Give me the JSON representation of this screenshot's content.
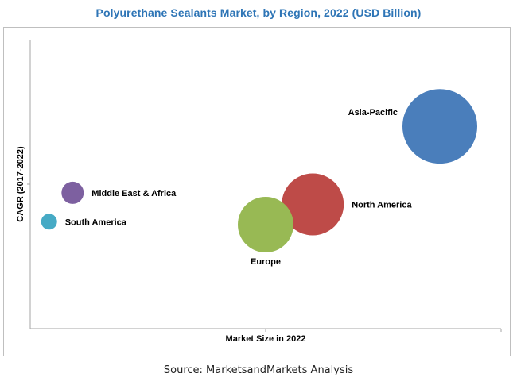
{
  "chart_data": {
    "type": "bubble",
    "title": "Polyurethane Sealants Market, by Region, 2022 (USD Billion)",
    "xlabel": "Market Size in 2022",
    "ylabel": "CAGR (2017-2022)",
    "xlim": [
      0,
      100
    ],
    "ylim": [
      0,
      100
    ],
    "grid": false,
    "legend": "none",
    "series": [
      {
        "label": "Asia-Pacific",
        "x": 87,
        "y": 70,
        "size": 47,
        "color": "#4a7ebb",
        "label_position": "upper-left"
      },
      {
        "label": "North America",
        "x": 60,
        "y": 43,
        "size": 39,
        "color": "#be4b48",
        "label_position": "right"
      },
      {
        "label": "Europe",
        "x": 50,
        "y": 36,
        "size": 35,
        "color": "#98b954",
        "label_position": "below"
      },
      {
        "label": "Middle East & Africa",
        "x": 9,
        "y": 47,
        "size": 14,
        "color": "#7d60a0",
        "label_position": "right"
      },
      {
        "label": "South America",
        "x": 4,
        "y": 37,
        "size": 10,
        "color": "#46aac5",
        "label_position": "right"
      }
    ]
  },
  "source": "Source: MarketsandMarkets Analysis"
}
